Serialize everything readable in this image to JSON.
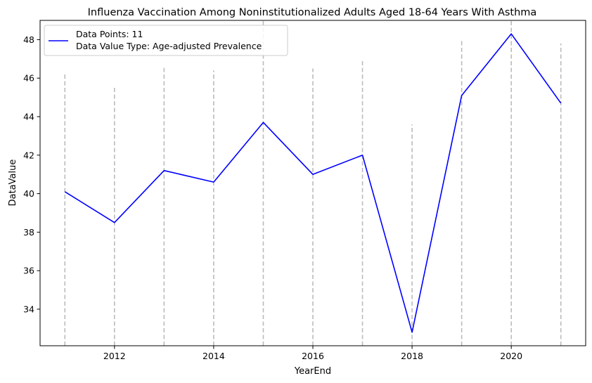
{
  "chart_data": {
    "type": "line",
    "title": "Influenza Vaccination Among Noninstitutionalized Adults Aged 18-64 Years With Asthma",
    "xlabel": "YearEnd",
    "ylabel": "DataValue",
    "x": [
      2011,
      2012,
      2013,
      2014,
      2015,
      2016,
      2017,
      2018,
      2019,
      2020,
      2021
    ],
    "series": [
      {
        "name": "Data Points: 11\nData Value Type: Age-adjusted Prevalence",
        "values": [
          40.1,
          38.5,
          41.2,
          40.6,
          43.7,
          41.0,
          42.0,
          32.8,
          45.1,
          48.3,
          44.7
        ],
        "color": "#0000ff"
      }
    ],
    "error_bars": {
      "low": [
        32.1,
        32.1,
        32.1,
        32.1,
        32.1,
        32.1,
        32.1,
        32.1,
        32.1,
        32.1,
        32.1
      ],
      "high": [
        46.2,
        45.6,
        46.6,
        46.4,
        49.0,
        46.5,
        46.9,
        43.6,
        48.0,
        49.0,
        47.8
      ],
      "color": "#bbbbbb",
      "style": "dashed"
    },
    "xlim": [
      2010.5,
      2021.5
    ],
    "ylim": [
      32.1,
      49.0
    ],
    "xticks": [
      2012,
      2014,
      2016,
      2018,
      2020
    ],
    "yticks": [
      34,
      36,
      38,
      40,
      42,
      44,
      46,
      48
    ],
    "grid": false,
    "legend": {
      "placement": "top-left",
      "lines": [
        "Data Points: 11",
        "Data Value Type: Age-adjusted Prevalence"
      ]
    }
  }
}
